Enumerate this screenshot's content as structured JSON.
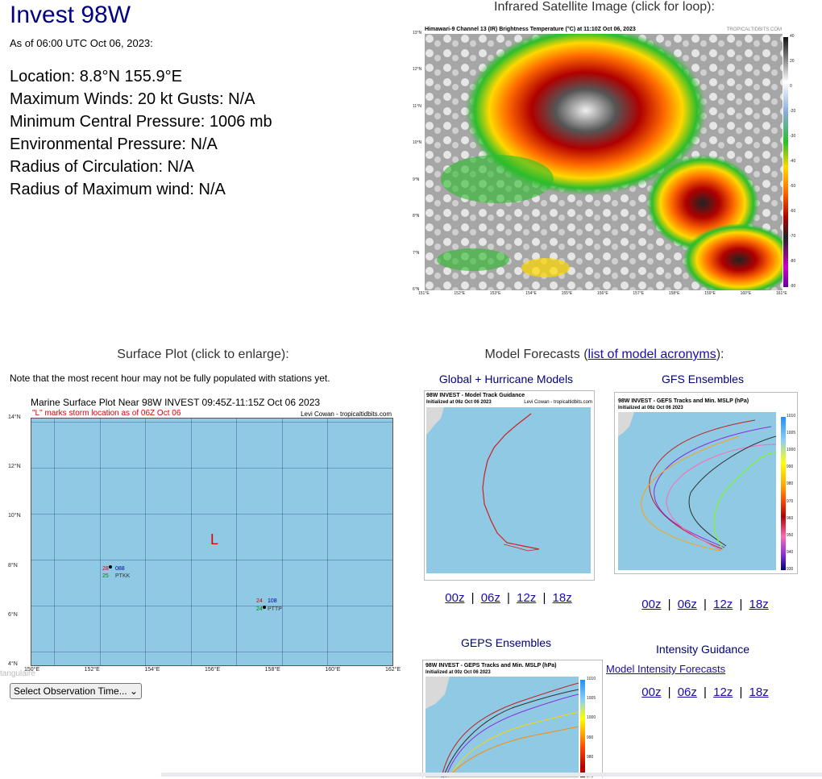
{
  "storm": {
    "title": "Invest 98W",
    "as_of": "As of 06:00 UTC Oct 06, 2023:",
    "location": "Location: 8.8°N 155.9°E",
    "winds": "Maximum Winds: 20 kt  Gusts: N/A",
    "pressure": "Minimum Central Pressure: 1006 mb",
    "env_pressure": "Environmental Pressure: N/A",
    "radius_circ": "Radius of Circulation: N/A",
    "radius_max": "Radius of Maximum wind: N/A"
  },
  "satellite": {
    "caption": "Infrared Satellite Image (click for loop):",
    "header": "Himawari-9 Channel 13 (IR) Brightness Temperature (°C) at 11:10Z Oct 06, 2023",
    "credit": "TROPICALTIDBITS.COM",
    "lat_labels": [
      "13°N",
      "12°N",
      "11°N",
      "10°N",
      "9°N",
      "8°N",
      "7°N",
      "6°N"
    ],
    "lon_labels": [
      "151°E",
      "152°E",
      "153°E",
      "154°E",
      "155°E",
      "156°E",
      "157°E",
      "158°E",
      "159°E",
      "160°E",
      "161°E"
    ],
    "scale_labels": [
      "40",
      "20",
      "0",
      "-20",
      "-30",
      "-40",
      "-50",
      "-60",
      "-70",
      "-80",
      "-90"
    ]
  },
  "surface": {
    "caption": "Surface Plot (click to enlarge):",
    "note": "Note that the most recent hour may not be fully populated with stations yet.",
    "map_title": "Marine Surface Plot Near 98W INVEST 09:45Z-11:15Z Oct 06 2023",
    "map_subtitle": "\"L\" marks storm location as of 06Z Oct 06",
    "credit": "Levi Cowan - tropicaltidbits.com",
    "storm_marker": "L",
    "lat_labels": [
      "14°N",
      "12°N",
      "10°N",
      "8°N",
      "6°N",
      "4°N"
    ],
    "lon_labels": [
      "150°E",
      "152°E",
      "154°E",
      "156°E",
      "158°E",
      "160°E",
      "162°E"
    ],
    "stations": [
      {
        "id": "PTKK",
        "temp": "28",
        "dew": "25",
        "pressure": "088"
      },
      {
        "id": "PTTP",
        "temp": "24",
        "dew": "24",
        "pressure": "108"
      }
    ],
    "select_label": "Select Observation Time... ⌄",
    "overflow_text": "tangulaire"
  },
  "models": {
    "caption_prefix": "Model Forecasts (",
    "caption_link": "list of model acronyms",
    "caption_suffix": "):",
    "global_title": "Global + Hurricane Models",
    "global_map_title": "98W INVEST - Model Track Guidance",
    "global_map_sub": "Initialized at 06z Oct 06 2023",
    "gfs_title": "GFS Ensembles",
    "gfs_map_title": "98W INVEST - GEFS Tracks and Min. MSLP (hPa)",
    "gfs_map_sub": "Initialized at 06z Oct 06 2023",
    "geps_title": "GEPS Ensembles",
    "geps_map_title": "98W INVEST - GEPS Tracks and Min. MSLP (hPa)",
    "geps_map_sub": "Initialized at 00z Oct 06 2023",
    "intensity_title": "Intensity Guidance",
    "intensity_link": "Model Intensity Forecasts",
    "map_credit": "Levi Cowan - tropicaltidbits.com",
    "runs": [
      "00z",
      "06z",
      "12z",
      "18z"
    ],
    "separator": "|",
    "mslp_scale": [
      "1010",
      "1005",
      "1000",
      "990",
      "980",
      "970",
      "960",
      "950",
      "940",
      "930"
    ]
  },
  "colors": {
    "title": "#000080",
    "link": "#1a0dab",
    "ocean": "#8fc9e3",
    "land": "#d9d9d9",
    "storm_marker": "#e00000"
  }
}
